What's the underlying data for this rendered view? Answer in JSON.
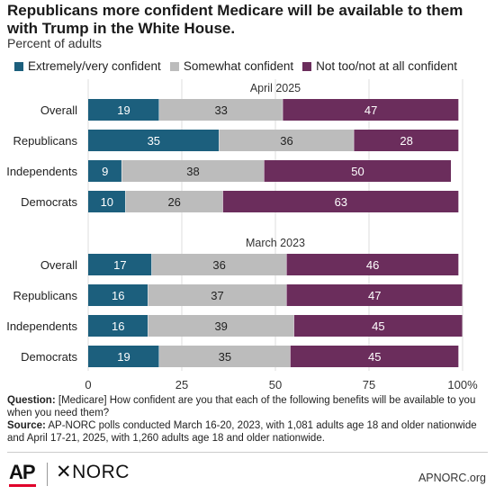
{
  "header": {
    "title": "Republicans more confident Medicare will be available to them with Trump in the White House.",
    "subtitle": "Percent of adults"
  },
  "legend": [
    {
      "label": "Extremely/very confident",
      "color": "#1c5f7d"
    },
    {
      "label": "Somewhat confident",
      "color": "#bcbcbc"
    },
    {
      "label": "Not too/not at all confident",
      "color": "#6b2d5c"
    }
  ],
  "chart_data": {
    "type": "bar",
    "orientation": "horizontal",
    "stacked": true,
    "xlim": [
      0,
      100
    ],
    "x_ticks": [
      "0",
      "25",
      "50",
      "75",
      "100%"
    ],
    "grid": true,
    "legend_position": "top",
    "series": [
      {
        "name": "Extremely/very confident",
        "color": "#1c5f7d",
        "label_color": "#ffffff"
      },
      {
        "name": "Somewhat confident",
        "color": "#bcbcbc",
        "label_color": "#222222"
      },
      {
        "name": "Not too/not at all confident",
        "color": "#6b2d5c",
        "label_color": "#ffffff"
      }
    ],
    "panels": [
      {
        "label": "April 2025",
        "categories": [
          "Overall",
          "Republicans",
          "Independents",
          "Democrats"
        ],
        "values": [
          [
            19,
            33,
            47
          ],
          [
            35,
            36,
            28
          ],
          [
            9,
            38,
            50
          ],
          [
            10,
            26,
            63
          ]
        ]
      },
      {
        "label": "March 2023",
        "categories": [
          "Overall",
          "Republicans",
          "Independents",
          "Democrats"
        ],
        "values": [
          [
            17,
            36,
            46
          ],
          [
            16,
            37,
            47
          ],
          [
            16,
            39,
            45
          ],
          [
            19,
            35,
            45
          ]
        ]
      }
    ]
  },
  "notes": {
    "question_label": "Question:",
    "question_text": "[Medicare] How confident are you that each of the following benefits will be available to you when you need them?",
    "source_label": "Source:",
    "source_text": "AP-NORC polls conducted March 16-20, 2023, with 1,081 adults age 18 and older nationwide and April 17-21, 2025, with 1,260 adults age 18 and older nationwide."
  },
  "footer": {
    "logo_ap": "AP",
    "logo_norc": "✕NORC",
    "credit": "APNORC.org"
  }
}
